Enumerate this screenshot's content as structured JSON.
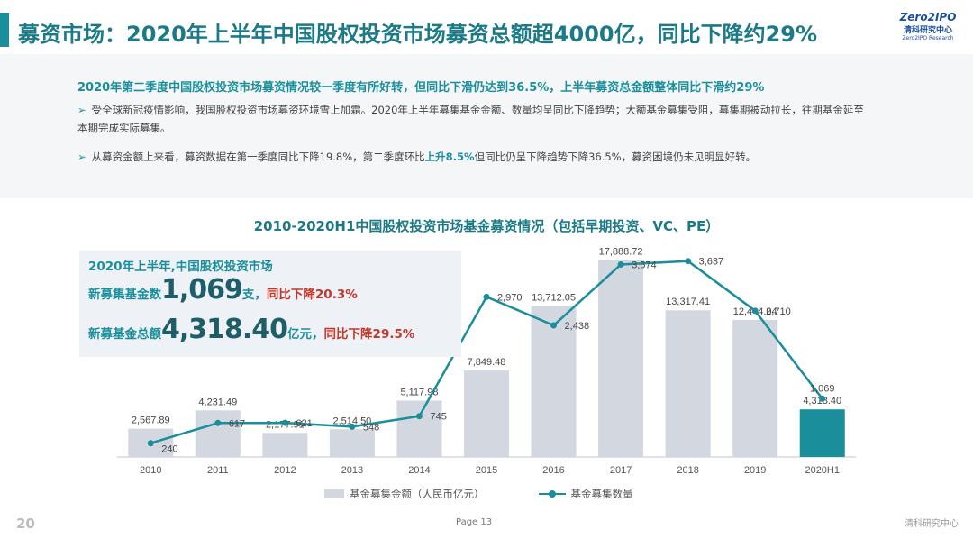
{
  "title": "募资市场：2020年上半年中国股权投资市场募资总额超4000亿，同比下降约29%",
  "logo": {
    "top": "Zero2IPO",
    "mid": "清科研究中心",
    "bot": "Zero2IPO Research"
  },
  "summary": {
    "headline": "2020年第二季度中国股权投资市场募资情况较一季度有所好转，但同比下滑仍达到36.5%，上半年募资总金额整体同比下滑约29%",
    "bullet1": "受全球新冠疫情影响，我国股权投资市场募资环境雪上加霜。2020年上半年募集基金金额、数量均呈同比下降趋势；大额基金募集受阻，募集期被动拉长，往期基金延至本期完成实际募集。",
    "bullet2_a": "从募资金额上来看，募资数据在第一季度同比下降19.8%，第二季度环比",
    "bullet2_hl": "上升8.5%",
    "bullet2_b": "但同比仍呈下降趋势下降36.5%，募资困境仍未见明显好转。"
  },
  "highlight": {
    "line1": "2020年上半年,中国股权投资市场",
    "count_label": "新募集基金数",
    "count_value": "1,069",
    "count_unit": "支，",
    "count_change": "同比下降20.3%",
    "amount_label": "新募基金总额",
    "amount_value": "4,318.40",
    "amount_unit": "亿元，",
    "amount_change": "同比下降29.5%"
  },
  "chart_data": {
    "type": "bar",
    "title": "2010-2020H1中国股权投资市场基金募资情况（包括早期投资、VC、PE）",
    "categories": [
      "2010",
      "2011",
      "2012",
      "2013",
      "2014",
      "2015",
      "2016",
      "2017",
      "2018",
      "2019",
      "2020H1"
    ],
    "series": [
      {
        "name": "基金募集金额（人民币亿元）",
        "type": "bar",
        "values": [
          2567.89,
          4231.49,
          2177.91,
          2514.5,
          5117.98,
          7849.48,
          13712.05,
          17888.72,
          13317.41,
          12444.04,
          4318.4
        ],
        "labels": [
          "2,567.89",
          "4,231.49",
          "2,177.91",
          "2,514.50",
          "5,117.98",
          "7,849.48",
          "13,712.05",
          "17,888.72",
          "13,317.41",
          "12,444.04",
          "4,318.40"
        ]
      },
      {
        "name": "基金募集数量",
        "type": "line",
        "values": [
          240,
          617,
          621,
          548,
          745,
          2970,
          2438,
          3574,
          3637,
          2710,
          1069
        ],
        "labels": [
          "240",
          "617",
          "621",
          "548",
          "745",
          "2,970",
          "2,438",
          "3,574",
          "3,637",
          "2,710",
          "1,069"
        ]
      }
    ],
    "colors": {
      "bar": "#d3d7df",
      "bar_highlight": "#1b8e9b",
      "line": "#1b8e9b"
    }
  },
  "footer": {
    "page": "Page 13",
    "brand": "清科研究中心",
    "mark": "20"
  }
}
